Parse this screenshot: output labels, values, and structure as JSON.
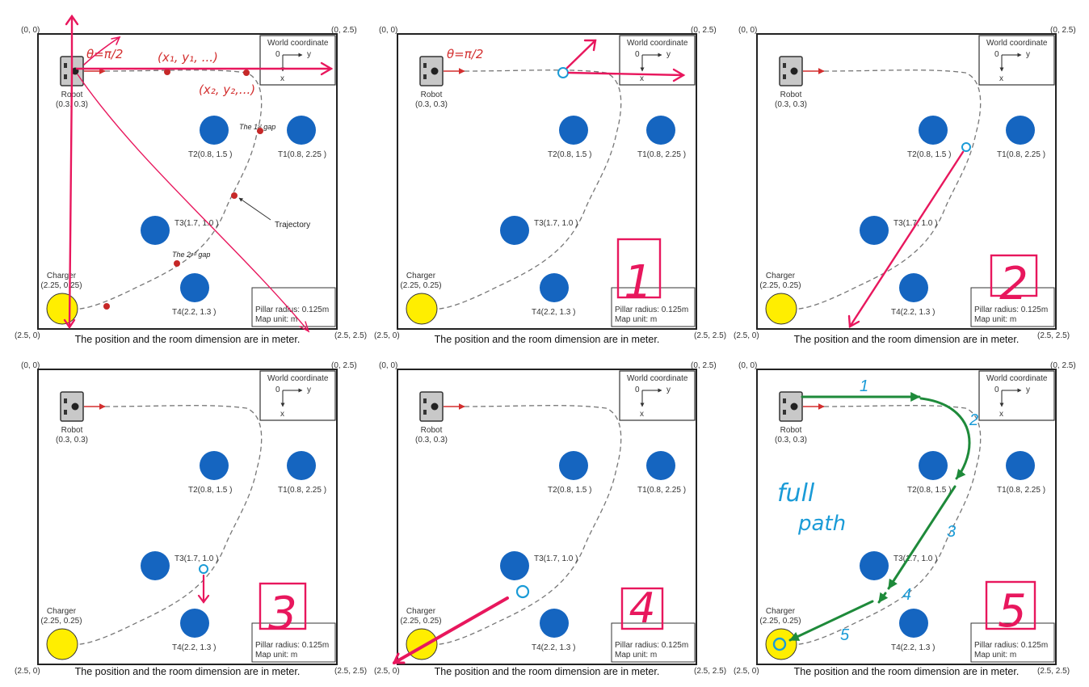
{
  "corners": {
    "top_left": "(0, 0)",
    "top_right": "(0, 2.5)",
    "bottom_left": "(2.5, 0)",
    "bottom_right": "(2.5, 2.5)"
  },
  "world_coordinate": {
    "title": "World coordinate",
    "origin": "0",
    "y_axis": "y",
    "x_axis": "x"
  },
  "robot": {
    "label": "Robot",
    "position": "(0.3, 0.3)"
  },
  "charger": {
    "label": "Charger",
    "position": "(2.25, 0.25)"
  },
  "pillars": {
    "t1": "T1(0.8, 2.25 )",
    "t2": "T2(0.8, 1.5 )",
    "t3": "T3(1.7, 1.0 )",
    "t4": "T4(2.2, 1.3 )"
  },
  "info_box": {
    "radius": "Pillar radius: 0.125m",
    "unit": "Map unit: m"
  },
  "caption": "The position and the room dimension are in meter.",
  "panel1_annotations": {
    "theta": "θ=π/2",
    "point1": "(x₁, y₁, ...)",
    "point2": "(x₂, y₂,...)",
    "gap1": "The 1ˢᵗ gap",
    "gap2": "The 2ⁿᵈ gap",
    "trajectory": "Trajectory"
  },
  "step_labels": [
    "1",
    "2",
    "3",
    "4",
    "5"
  ],
  "panel6_annotations": {
    "note_line1": "full",
    "note_line2": "path",
    "segments": [
      "1",
      "2",
      "3",
      "4",
      "5"
    ]
  },
  "colors": {
    "pillar": "#1565c0",
    "charger": "#ffee00",
    "pen_red": "#e8175d",
    "pen_green": "#1e8a3a",
    "pen_blue": "#1a9bd7",
    "trajectory": "#777777"
  }
}
